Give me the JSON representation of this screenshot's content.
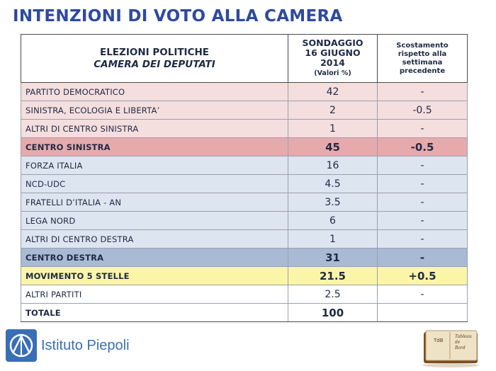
{
  "page_title": "INTENZIONI DI VOTO ALLA CAMERA",
  "colors": {
    "title": "#2e4a9e",
    "pink_row": "#f5dede",
    "center_left_total": "#e6aaad",
    "blue_row": "#dde5f0",
    "center_right_total": "#a9bad4",
    "m5s_row": "#fbf5a8",
    "logo_blue": "#3a6fb6"
  },
  "chart_data": {
    "type": "table",
    "header": {
      "col1_line1": "ELEZIONI POLITICHE",
      "col1_line2": "CAMERA DEI DEPUTATI",
      "col2_line1": "SONDAGGIO",
      "col2_line2": "16 GIUGNO",
      "col2_line3": "2014",
      "col2_unit": "(Valori %)",
      "col3_line1": "Scostamento",
      "col3_line2": "rispetto alla",
      "col3_line3": "settimana",
      "col3_line4": "precedente"
    },
    "rows": [
      {
        "party": "PARTITO DEMOCRATICO",
        "value": "42",
        "change": "-"
      },
      {
        "party": "SINISTRA, ECOLOGIA E LIBERTA’",
        "value": "2",
        "change": "-0.5"
      },
      {
        "party": "ALTRI DI CENTRO SINISTRA",
        "value": "1",
        "change": "-"
      },
      {
        "party": "CENTRO SINISTRA",
        "value": "45",
        "change": "-0.5"
      },
      {
        "party": "FORZA ITALIA",
        "value": "16",
        "change": "-"
      },
      {
        "party": "NCD-UDC",
        "value": "4.5",
        "change": "-"
      },
      {
        "party": "FRATELLI D’ITALIA - AN",
        "value": "3.5",
        "change": "-"
      },
      {
        "party": "LEGA NORD",
        "value": "6",
        "change": "-"
      },
      {
        "party": "ALTRI DI CENTRO DESTRA",
        "value": "1",
        "change": "-"
      },
      {
        "party": "CENTRO DESTRA",
        "value": "31",
        "change": "-"
      },
      {
        "party": "MOVIMENTO 5 STELLE",
        "value": "21.5",
        "change": "+0.5"
      },
      {
        "party": "ALTRI PARTITI",
        "value": "2.5",
        "change": "-"
      },
      {
        "party": "TOTALE",
        "value": "100",
        "change": ""
      }
    ]
  },
  "footer": {
    "logo_text": "Istituto Piepoli",
    "logo_icon": "piepoli-logo-icon",
    "badge_icon": "tableau-de-bord-book-icon",
    "badge_abbr": "TdB",
    "badge_line1": "Tableau",
    "badge_line2": "de",
    "badge_line3": "Bord"
  }
}
